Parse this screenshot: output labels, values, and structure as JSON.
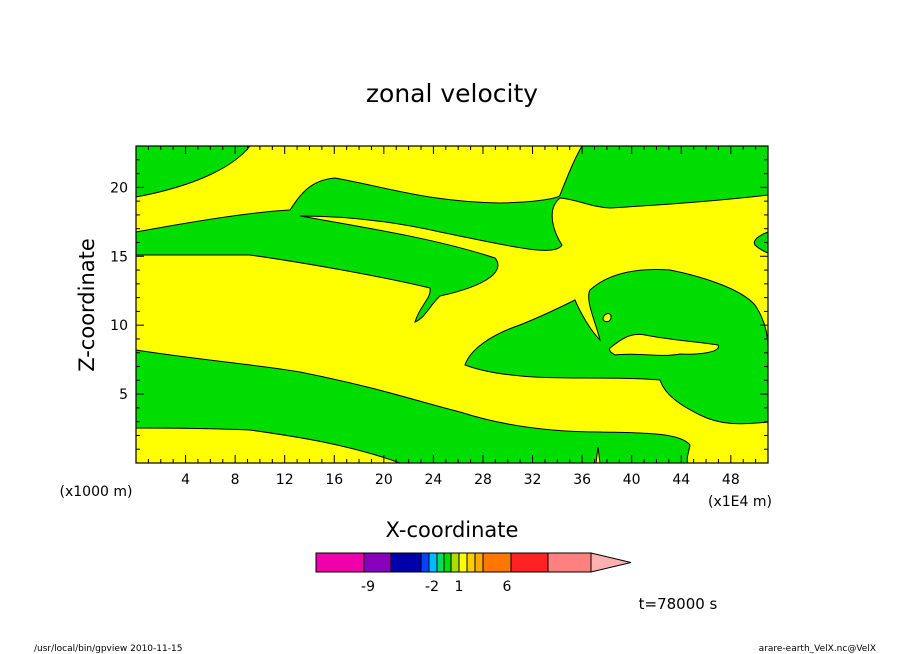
{
  "chart_data": {
    "type": "heatmap",
    "title": "zonal velocity",
    "xlabel": "X-coordinate",
    "ylabel": "Z-coordinate",
    "x_unit": "(x1E4 m)",
    "y_unit": "(x1000 m)",
    "xlim": [
      0,
      51
    ],
    "ylim": [
      0,
      23
    ],
    "x_ticks": [
      "4",
      "8",
      "12",
      "16",
      "20",
      "24",
      "28",
      "32",
      "36",
      "40",
      "44",
      "48"
    ],
    "y_ticks": [
      "5",
      "10",
      "15",
      "20"
    ],
    "fill_colors": {
      "positive": "#ffff00",
      "negative": "#00dd00"
    },
    "contour_levels": [
      -1,
      1
    ],
    "colorbar": {
      "colors": [
        "#ee00aa",
        "#8800bb",
        "#0000aa",
        "#0044ff",
        "#00bbff",
        "#00dd66",
        "#00dd00",
        "#aadd00",
        "#ffff00",
        "#ffcc00",
        "#ffaa00",
        "#ff7700",
        "#ff2222",
        "#ff8080",
        "#ffb0b0"
      ],
      "tick_labels": [
        "-9",
        "-2",
        "1",
        "6"
      ]
    },
    "time_label": "t=78000 s"
  },
  "footer": {
    "left": "/usr/local/bin/gpview   2010-11-15",
    "right": "arare-earth_VelX.nc@VelX"
  }
}
